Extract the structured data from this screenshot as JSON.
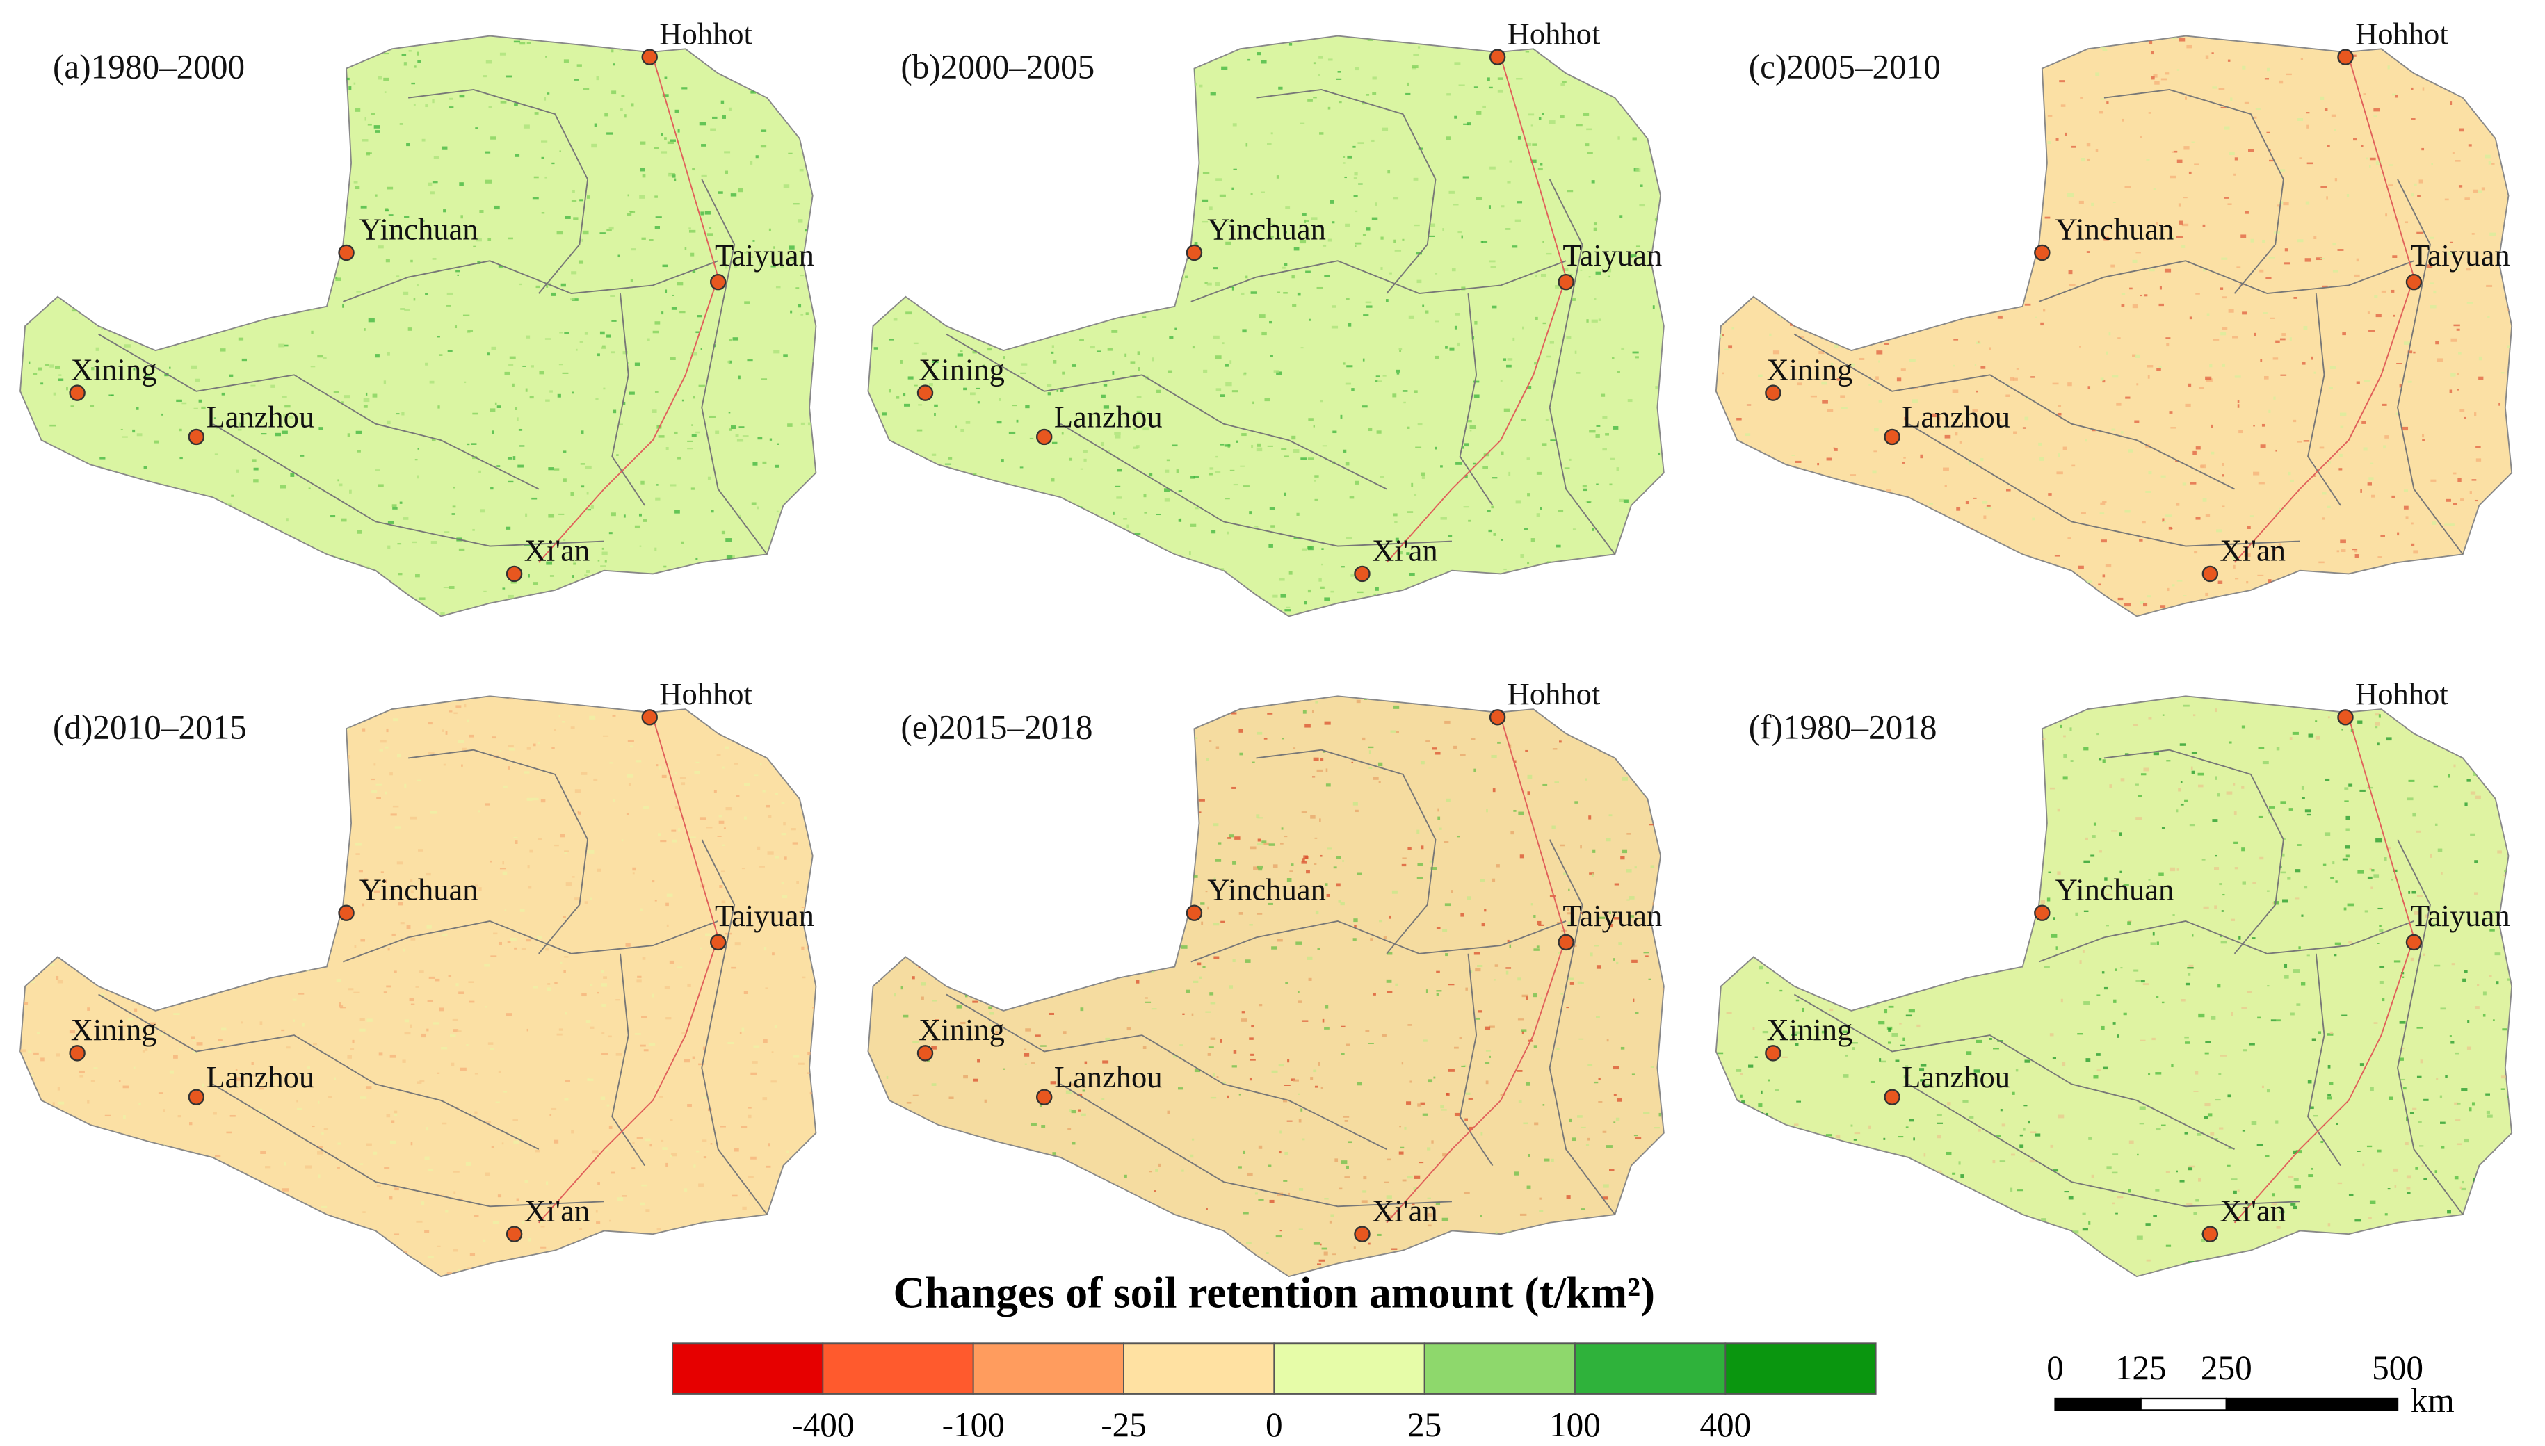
{
  "panels": [
    {
      "label": "(a)1980–2000",
      "base_color": "#daf5a2",
      "speckle_colors": [
        "#3cb43c",
        "#7fd05a",
        "#a9e27a"
      ]
    },
    {
      "label": "(b)2000–2005",
      "base_color": "#daf5a2",
      "speckle_colors": [
        "#3cb43c",
        "#7fd05a",
        "#a9e27a"
      ]
    },
    {
      "label": "(c)2005–2010",
      "base_color": "#fbe0a4",
      "speckle_colors": [
        "#e06040",
        "#f5b27a",
        "#d7ef9c"
      ]
    },
    {
      "label": "(d)2010–2015",
      "base_color": "#fbe0a4",
      "speckle_colors": [
        "#f7c98c",
        "#eef2a6",
        "#f5b27a"
      ]
    },
    {
      "label": "(e)2015–2018",
      "base_color": "#f5dca0",
      "speckle_colors": [
        "#d9502d",
        "#6cc04a",
        "#e7a56a",
        "#c6e88a"
      ]
    },
    {
      "label": "(f)1980–2018",
      "base_color": "#dff3a2",
      "speckle_colors": [
        "#1e9a28",
        "#4cbb3c",
        "#8fd46a",
        "#e9c88e"
      ]
    }
  ],
  "cities": [
    "Hohhot",
    "Yinchuan",
    "Taiyuan",
    "Xining",
    "Lanzhou",
    "Xi'an"
  ],
  "legend": {
    "title": "Changes of soil retention amount (t/km²)",
    "colors": [
      "#e60000",
      "#ff5a2d",
      "#ff9c5e",
      "#ffe1a2",
      "#e6fca8",
      "#8ed86c",
      "#2fb23b",
      "#0a960f"
    ],
    "ticks": [
      -400,
      -100,
      -25,
      0,
      25,
      100,
      400
    ]
  },
  "scale_bar": {
    "ticks": [
      0,
      125,
      250,
      500
    ],
    "unit": "km"
  }
}
